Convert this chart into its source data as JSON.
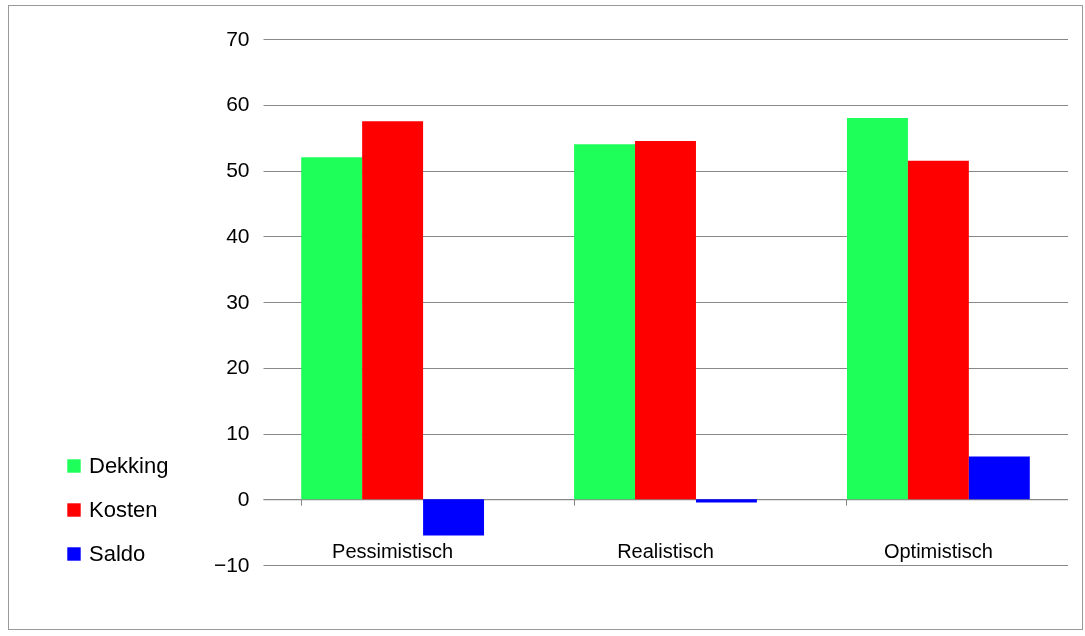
{
  "chart_data": {
    "type": "bar",
    "categories": [
      "Pessimistisch",
      "Realistisch",
      "Optimistisch"
    ],
    "series": [
      {
        "name": "Dekking",
        "color": "#1eff5a",
        "values": [
          52,
          54,
          58
        ]
      },
      {
        "name": "Kosten",
        "color": "#ff0000",
        "values": [
          57.5,
          54.5,
          51.5
        ]
      },
      {
        "name": "Saldo",
        "color": "#0000ff",
        "values": [
          -5.5,
          -0.5,
          6.5
        ]
      }
    ],
    "ylim": [
      -10,
      70
    ],
    "yticks": [
      -10,
      0,
      10,
      20,
      30,
      40,
      50,
      60,
      70
    ],
    "grid": "y",
    "legend": "left"
  }
}
